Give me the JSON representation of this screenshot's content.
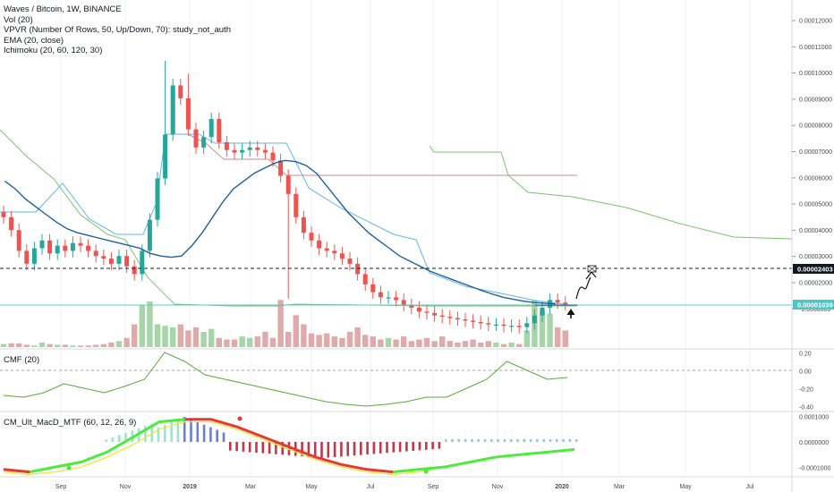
{
  "legend": {
    "symbol": "Waves / Bitcoin, 1W, BINANCE",
    "studies": [
      "Vol (20)",
      "VPVR (Number Of Rows, 50, Up/Down, 70): study_not_auth",
      "EMA (20, close)",
      "Ichimoku (20, 60, 120, 30)"
    ]
  },
  "price_axis": {
    "ticks": [
      "0.00012000",
      "0.00011000",
      "0.00010000",
      "0.00009000",
      "0.00008000",
      "0.00007000",
      "0.00006000",
      "0.00005000",
      "0.00004000",
      "0.00003000",
      "0.00002000",
      "-0.0000000"
    ],
    "tag_upper": "0.00002403",
    "tag_current": "0.00001039"
  },
  "cmf_pane": {
    "title": "CMF (20)",
    "ticks": [
      "0.20",
      "0.00",
      "-0.20",
      "-0.40"
    ]
  },
  "macd_pane": {
    "title": "CM_Ult_MacD_MTF (60, 12, 26, 9)",
    "ticks": [
      "0.0001000",
      "0.0000000",
      "-0.0001000"
    ]
  },
  "time_axis": [
    "Sep",
    "Nov",
    "2019",
    "Mar",
    "May",
    "Jul",
    "Sep",
    "Nov",
    "2020",
    "Mar",
    "May",
    "Jul"
  ],
  "colors": {
    "up": "#26a69a",
    "down": "#ef5350",
    "vol_up": "#a5d6a7",
    "vol_down": "#e0aaaa",
    "ema": "#1f5f9e",
    "tenkan": "#5fb6e6",
    "span": "#7bc36a",
    "kijun": "#c98a8a",
    "cmf": "#5aa83a",
    "current_line": "#5ec8c8",
    "macd_fast": "#4cec3c",
    "macd_slow": "#f2e640",
    "macd_red": "#e53935"
  },
  "icons": [
    "hand-drawn-arrow-icon",
    "flag-icon",
    "up-arrow-icon"
  ],
  "chart_data": {
    "type": "candlestick",
    "timeframe": "1W",
    "symbol": "Waves / Bitcoin",
    "exchange": "BINANCE",
    "ylim": [
      -5e-06,
      0.000125
    ],
    "closes": [
      4.4,
      3.9,
      3.1,
      2.6,
      3.2,
      3.5,
      3.0,
      3.3,
      3.1,
      3.4,
      3.3,
      3.1,
      2.9,
      2.8,
      2.6,
      2.9,
      2.5,
      2.2,
      3.1,
      4.3,
      5.9,
      7.6,
      9.5,
      9.0,
      7.8,
      7.1,
      7.5,
      8.2,
      7.3,
      7.0,
      6.9,
      7.0,
      7.1,
      7.0,
      6.9,
      6.6,
      6.0,
      5.3,
      4.4,
      3.8,
      3.5,
      3.2,
      3.1,
      3.0,
      2.8,
      2.6,
      2.2,
      1.8,
      1.5,
      1.3,
      1.3,
      1.2,
      1.0,
      0.9,
      0.75,
      0.7,
      0.6,
      0.55,
      0.5,
      0.45,
      0.4,
      0.35,
      0.3,
      0.25,
      0.25,
      0.2,
      0.2,
      0.15,
      0.3,
      0.6,
      0.9,
      1.2,
      1.1,
      1.039
    ],
    "price_scale_note": "values ×1e-5 BTC",
    "horizontal_lines": [
      2.403e-05,
      1.039e-05
    ],
    "ema_20": [
      5.8,
      5.5,
      5.1,
      4.8,
      4.5,
      4.2,
      3.95,
      3.8,
      3.7,
      3.6,
      3.5,
      3.4,
      3.3,
      3.2,
      3.0,
      2.9,
      2.85,
      2.9,
      3.3,
      3.8,
      4.4,
      5.0,
      5.5,
      5.8,
      6.1,
      6.3,
      6.5,
      6.6,
      6.55,
      6.4,
      6.1,
      5.6,
      5.1,
      4.6,
      4.2,
      3.8,
      3.5,
      3.2,
      2.9,
      2.7,
      2.5,
      2.3,
      2.15,
      2.0,
      1.85,
      1.7,
      1.55,
      1.42,
      1.3,
      1.22,
      1.15,
      1.1,
      1.07,
      1.05
    ],
    "cmf_20": [
      -0.28,
      -0.3,
      -0.25,
      -0.15,
      -0.2,
      -0.25,
      -0.18,
      -0.1,
      0.2,
      0.1,
      -0.05,
      -0.1,
      -0.15,
      -0.2,
      -0.25,
      -0.3,
      -0.35,
      -0.38,
      -0.4,
      -0.38,
      -0.35,
      -0.3,
      -0.3,
      -0.2,
      -0.1,
      0.1,
      0.0,
      -0.1,
      -0.08
    ],
    "macd_fast": [
      -0.00011,
      -0.00012,
      -0.0001,
      -8e-05,
      -4e-05,
      2e-05,
      8e-05,
      9e-05,
      9e-05,
      6e-05,
      2e-05,
      -2e-05,
      -6e-05,
      -9e-05,
      -0.00011,
      -0.00012,
      -0.00011,
      -0.0001,
      -8e-05,
      -6e-05,
      -5e-05,
      -4e-05,
      -3e-05
    ],
    "macd_slow": [
      -0.00012,
      -0.00013,
      -0.00012,
      -0.0001,
      -6e-05,
      -1e-05,
      5e-05,
      8e-05,
      8e-05,
      5e-05,
      1e-05,
      -3e-05,
      -7e-05,
      -0.0001,
      -0.00012,
      -0.00013,
      -0.00012,
      -0.0001,
      -8e-05,
      -6e-05,
      -5e-05,
      -4e-05,
      -3e-05
    ]
  }
}
